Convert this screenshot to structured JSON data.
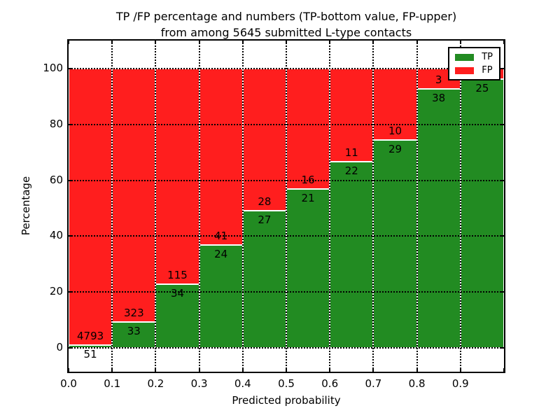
{
  "title": {
    "line1": "TP /FP percentage and numbers (TP-bottom value, FP-upper)",
    "line2": "from among 5645 submitted L-type contacts"
  },
  "chart_data": {
    "type": "bar",
    "stacked": true,
    "orientation": "vertical",
    "title": "TP /FP percentage and numbers (TP-bottom value, FP-upper)\nfrom among 5645 submitted L-type contacts",
    "n_total_submitted": 5645,
    "xlabel": "Predicted probability",
    "ylabel": "Percentage",
    "xlim": [
      0.0,
      1.0
    ],
    "ylim": [
      -8.5,
      110
    ],
    "grid": true,
    "grid_style": "dotted",
    "x_ticks": [
      0.0,
      0.1,
      0.2,
      0.3,
      0.4,
      0.5,
      0.6,
      0.7,
      0.8,
      0.9
    ],
    "x_tick_labels": [
      "0.0",
      "0.1",
      "0.2",
      "0.3",
      "0.4",
      "0.5",
      "0.6",
      "0.7",
      "0.8",
      "0.9"
    ],
    "y_ticks": [
      0,
      20,
      40,
      60,
      80,
      100
    ],
    "y_tick_labels": [
      "0",
      "20",
      "40",
      "60",
      "80",
      "100"
    ],
    "bin_width": 0.1,
    "legend": {
      "position": "upper right",
      "entries": [
        {
          "label": "TP",
          "color": "#228b22"
        },
        {
          "label": "FP",
          "color": "#ff1e1e"
        }
      ]
    },
    "series_note": "Each bar spans a 0.1 probability bin; green TP segment on bottom, red FP segment stacked to 100%. Numeric labels: FP count above the TP/FP boundary, TP count below it.",
    "bins": [
      {
        "x_range": [
          0.0,
          0.1
        ],
        "tp": 51,
        "fp": 4793,
        "tp_pct": 1.1,
        "fp_label": "4793",
        "tp_label": "51"
      },
      {
        "x_range": [
          0.1,
          0.2
        ],
        "tp": 33,
        "fp": 323,
        "tp_pct": 9.3,
        "fp_label": "323",
        "tp_label": "33"
      },
      {
        "x_range": [
          0.2,
          0.3
        ],
        "tp": 34,
        "fp": 115,
        "tp_pct": 22.8,
        "fp_label": "115",
        "tp_label": "34"
      },
      {
        "x_range": [
          0.3,
          0.4
        ],
        "tp": 24,
        "fp": 41,
        "tp_pct": 36.9,
        "fp_label": "41",
        "tp_label": "24"
      },
      {
        "x_range": [
          0.4,
          0.5
        ],
        "tp": 27,
        "fp": 28,
        "tp_pct": 49.1,
        "fp_label": "28",
        "tp_label": "27"
      },
      {
        "x_range": [
          0.5,
          0.6
        ],
        "tp": 21,
        "fp": 16,
        "tp_pct": 56.8,
        "fp_label": "16",
        "tp_label": "21"
      },
      {
        "x_range": [
          0.6,
          0.7
        ],
        "tp": 22,
        "fp": 11,
        "tp_pct": 66.7,
        "fp_label": "11",
        "tp_label": "22"
      },
      {
        "x_range": [
          0.7,
          0.8
        ],
        "tp": 29,
        "fp": 10,
        "tp_pct": 74.4,
        "fp_label": "10",
        "tp_label": "29"
      },
      {
        "x_range": [
          0.8,
          0.9
        ],
        "tp": 38,
        "fp": 3,
        "tp_pct": 92.7,
        "fp_label": "3",
        "tp_label": "38"
      },
      {
        "x_range": [
          0.9,
          1.0
        ],
        "tp": 25,
        "fp": null,
        "tp_pct": 96.2,
        "fp_label": null,
        "tp_label": "25",
        "fp_label_hidden_by_legend": true
      }
    ]
  },
  "colors": {
    "tp": "#228b22",
    "fp": "#ff1e1e",
    "grid": "#000000",
    "spine": "#000000",
    "background": "#ffffff"
  }
}
